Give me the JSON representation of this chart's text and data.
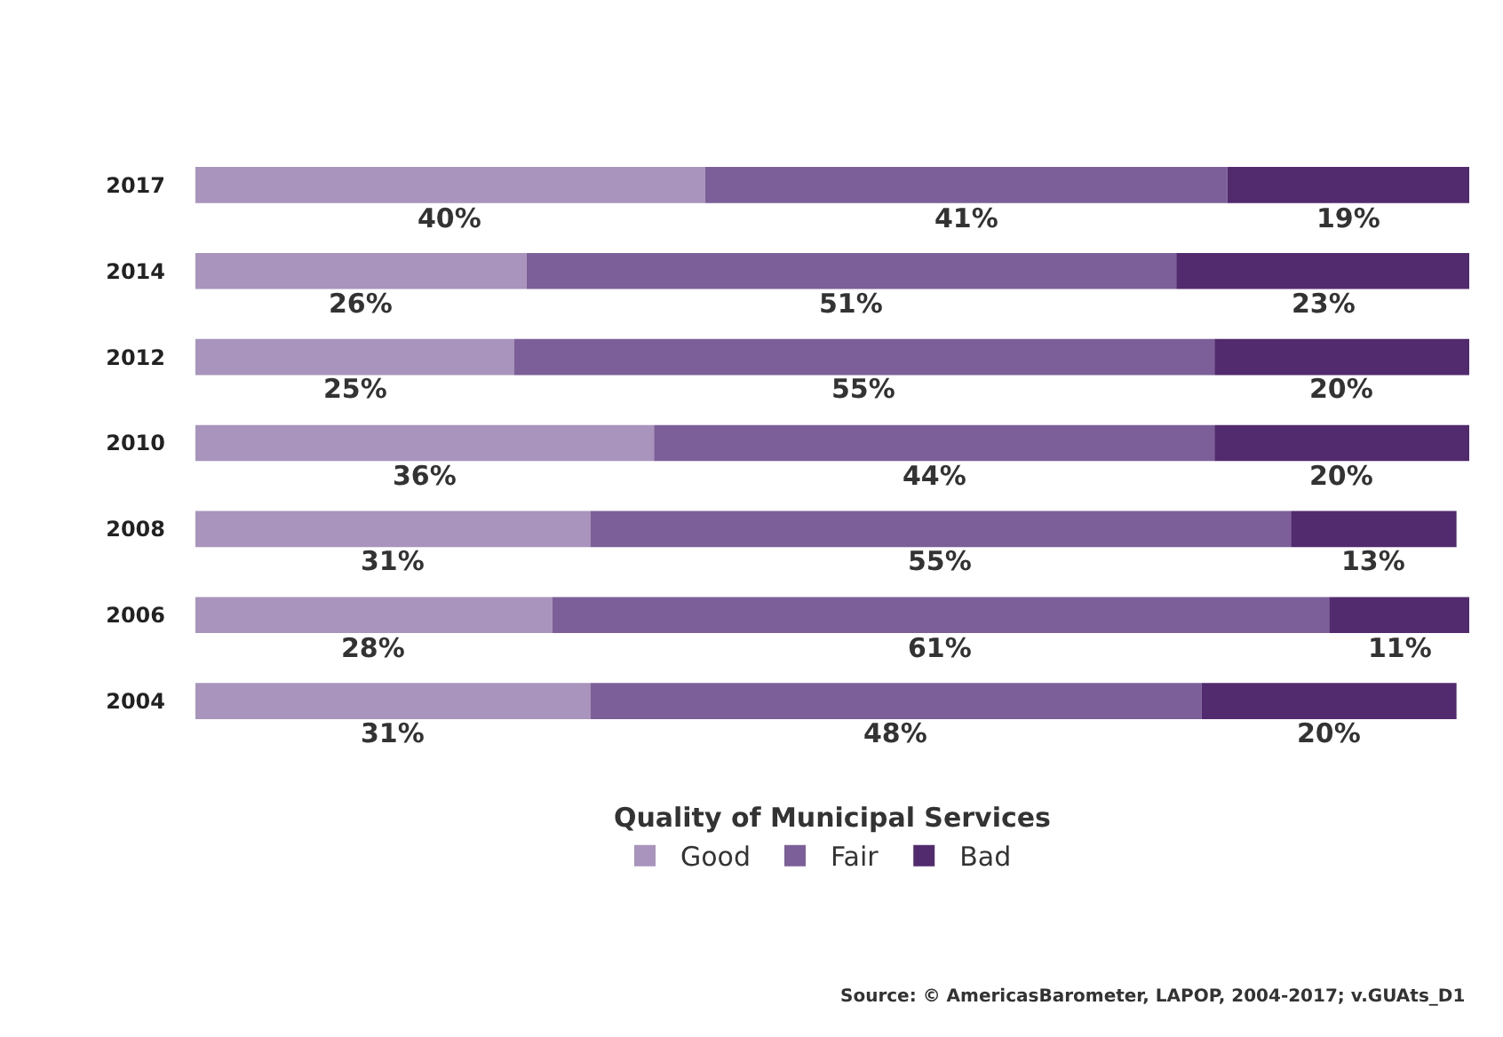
{
  "chart_data": {
    "type": "bar",
    "orientation": "horizontal",
    "stacked": true,
    "categories": [
      "2017",
      "2014",
      "2012",
      "2010",
      "2008",
      "2006",
      "2004"
    ],
    "series": [
      {
        "name": "Good",
        "color": "#a894bc",
        "values": [
          40,
          26,
          25,
          36,
          31,
          28,
          31
        ],
        "value_labels": [
          "40%",
          "26%",
          "25%",
          "36%",
          "31%",
          "28%",
          "31%"
        ]
      },
      {
        "name": "Fair",
        "color": "#7c5f98",
        "values": [
          41,
          51,
          55,
          44,
          55,
          61,
          48
        ],
        "value_labels": [
          "41%",
          "51%",
          "55%",
          "44%",
          "55%",
          "61%",
          "48%"
        ]
      },
      {
        "name": "Bad",
        "color": "#522a6e",
        "values": [
          19,
          23,
          20,
          20,
          13,
          11,
          20
        ],
        "value_labels": [
          "19%",
          "23%",
          "20%",
          "20%",
          "13%",
          "11%",
          "20%"
        ]
      }
    ],
    "legend": "bottom",
    "legend_title": "Quality of Municipal Services",
    "annotations": [
      "Source: © AmericasBarometer, LAPOP, 2004-2017; v.GUAts_D1"
    ]
  }
}
